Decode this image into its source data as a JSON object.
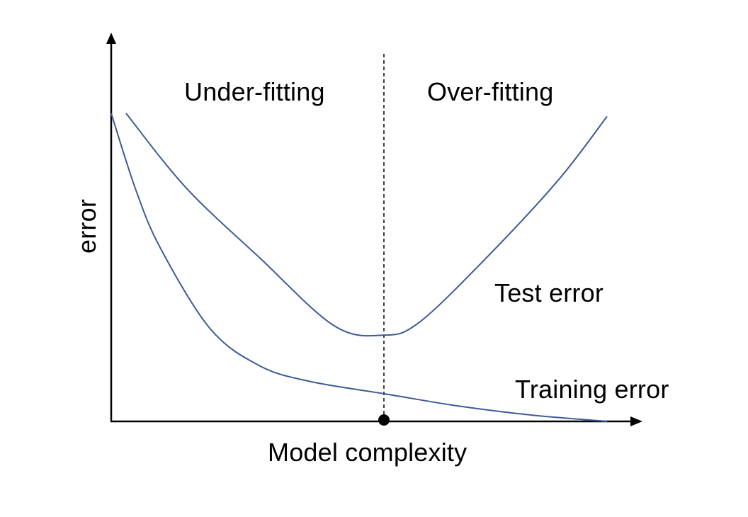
{
  "labels": {
    "under_fitting": "Under-fitting",
    "over_fitting": "Over-fitting",
    "test_error": "Test error",
    "training_error": "Training error",
    "x_axis": "Model complexity",
    "y_axis": "error"
  },
  "colors": {
    "curve": "#3D5A98",
    "axis": "#000000",
    "divider": "#000000"
  },
  "chart_data": {
    "type": "line",
    "xlabel": "Model complexity",
    "ylabel": "error",
    "xlim": [
      0,
      1
    ],
    "ylim": [
      0,
      1
    ],
    "ticks": "none",
    "series": [
      {
        "name": "Test error",
        "x": [
          0.03,
          0.15,
          0.3,
          0.45,
          0.55,
          0.62,
          0.75,
          0.9,
          1.0
        ],
        "y": [
          1.0,
          0.76,
          0.53,
          0.31,
          0.28,
          0.32,
          0.52,
          0.78,
          0.99
        ]
      },
      {
        "name": "Training error",
        "x": [
          0.0,
          0.05,
          0.1,
          0.2,
          0.3,
          0.4,
          0.55,
          0.7,
          0.85,
          1.0
        ],
        "y": [
          1.0,
          0.75,
          0.56,
          0.3,
          0.18,
          0.13,
          0.09,
          0.05,
          0.02,
          0.0
        ]
      }
    ],
    "optimum": {
      "x": 0.55
    },
    "annotations": [
      "Under-fitting",
      "Over-fitting",
      "Test error",
      "Training error"
    ]
  }
}
